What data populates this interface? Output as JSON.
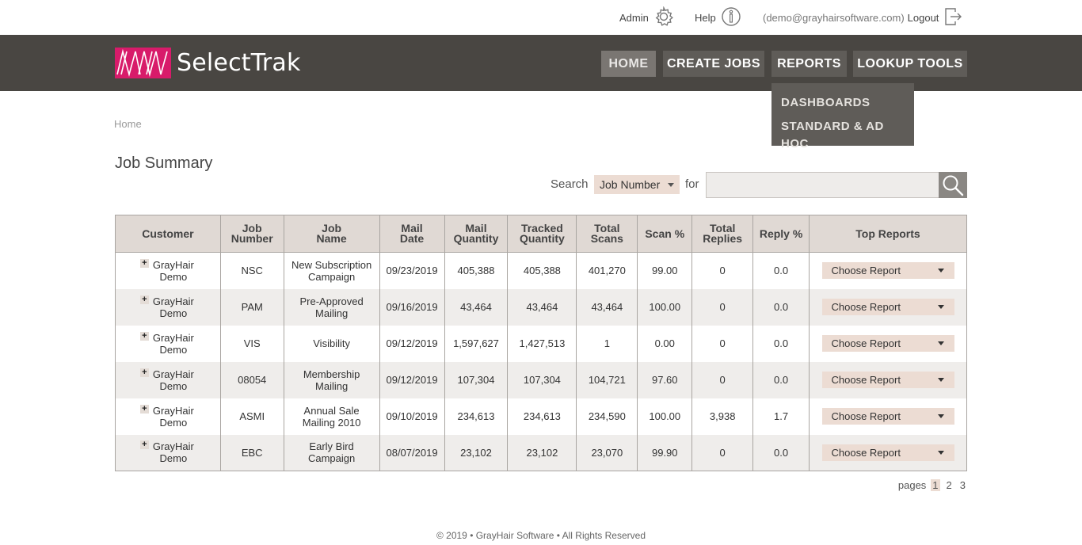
{
  "topbar": {
    "admin_label": "Admin",
    "help_label": "Help",
    "user_email": "(demo@grayhairsoftware.com)",
    "logout_label": "Logout"
  },
  "brand": {
    "name": "SelectTrak",
    "color": "#d81b6a"
  },
  "nav": {
    "home": "HOME",
    "create_jobs": "CREATE JOBS",
    "reports": "REPORTS",
    "lookup_tools": "LOOKUP TOOLS",
    "reports_menu": [
      "DASHBOARDS",
      "STANDARD & AD HOC"
    ]
  },
  "breadcrumb": "Home",
  "page_title": "Job Summary",
  "search": {
    "label": "Search",
    "field_selected": "Job Number",
    "for_label": "for",
    "value": ""
  },
  "table": {
    "headers": [
      "Customer",
      "Job\nNumber",
      "Job\nName",
      "Mail\nDate",
      "Mail\nQuantity",
      "Tracked\nQuantity",
      "Total\nScans",
      "Scan %",
      "Total\nReplies",
      "Reply %",
      "Top Reports"
    ],
    "rows": [
      {
        "customer": "GrayHair Demo",
        "job_number": "NSC",
        "job_name": "New Subscription Campaign",
        "mail_date": "09/23/2019",
        "mail_qty": "405,388",
        "tracked_qty": "405,388",
        "total_scans": "401,270",
        "scan_pct": "99.00",
        "total_replies": "0",
        "reply_pct": "0.0",
        "report": "Choose Report"
      },
      {
        "customer": "GrayHair Demo",
        "job_number": "PAM",
        "job_name": "Pre-Approved Mailing",
        "mail_date": "09/16/2019",
        "mail_qty": "43,464",
        "tracked_qty": "43,464",
        "total_scans": "43,464",
        "scan_pct": "100.00",
        "total_replies": "0",
        "reply_pct": "0.0",
        "report": "Choose Report"
      },
      {
        "customer": "GrayHair Demo",
        "job_number": "VIS",
        "job_name": "Visibility",
        "mail_date": "09/12/2019",
        "mail_qty": "1,597,627",
        "tracked_qty": "1,427,513",
        "total_scans": "1",
        "scan_pct": "0.00",
        "total_replies": "0",
        "reply_pct": "0.0",
        "report": "Choose Report"
      },
      {
        "customer": "GrayHair Demo",
        "job_number": "08054",
        "job_name": "Membership Mailing",
        "mail_date": "09/12/2019",
        "mail_qty": "107,304",
        "tracked_qty": "107,304",
        "total_scans": "104,721",
        "scan_pct": "97.60",
        "total_replies": "0",
        "reply_pct": "0.0",
        "report": "Choose Report"
      },
      {
        "customer": "GrayHair Demo",
        "job_number": "ASMI",
        "job_name": "Annual Sale Mailing 2010",
        "mail_date": "09/10/2019",
        "mail_qty": "234,613",
        "tracked_qty": "234,613",
        "total_scans": "234,590",
        "scan_pct": "100.00",
        "total_replies": "3,938",
        "reply_pct": "1.7",
        "report": "Choose Report"
      },
      {
        "customer": "GrayHair Demo",
        "job_number": "EBC",
        "job_name": "Early Bird Campaign",
        "mail_date": "08/07/2019",
        "mail_qty": "23,102",
        "tracked_qty": "23,102",
        "total_scans": "23,070",
        "scan_pct": "99.90",
        "total_replies": "0",
        "reply_pct": "0.0",
        "report": "Choose Report"
      }
    ]
  },
  "pager": {
    "label": "pages",
    "pages": [
      "1",
      "2",
      "3"
    ],
    "current": "1"
  },
  "footer": "© 2019 • GrayHair Software • All Rights Reserved",
  "icons": {
    "admin": "gear-icon",
    "help": "info-icon",
    "logout": "logout-icon",
    "search": "search-icon",
    "expand": "plus-icon"
  }
}
